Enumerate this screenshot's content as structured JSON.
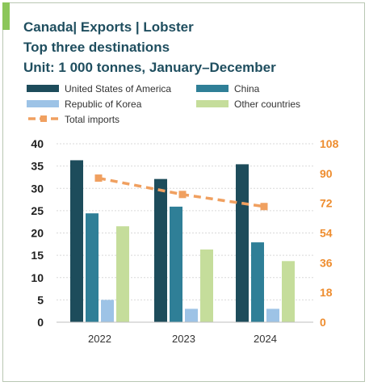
{
  "header": {
    "title_line1": "Canada|  Exports | Lobster",
    "title_line2": "Top three destinations",
    "title_line3": "Unit: 1 000 tonnes, January–December"
  },
  "colors": {
    "accent": "#8cc65a",
    "title": "#1f4e5f",
    "axis_left": "#1f1f1f",
    "axis_right": "#ee8d2f",
    "usa": "#1d4c5b",
    "china": "#2f7f97",
    "korea": "#9dc3e6",
    "other": "#c5dd9b",
    "total": "#f0a060",
    "grid": "#d9d9d9"
  },
  "chart_data": {
    "type": "bar",
    "categories": [
      "2022",
      "2023",
      "2024"
    ],
    "series": [
      {
        "name": "United States of America",
        "values": [
          36.3,
          32.1,
          35.4
        ],
        "color_key": "usa"
      },
      {
        "name": "China",
        "values": [
          24.4,
          25.9,
          17.9
        ],
        "color_key": "china"
      },
      {
        "name": "Republic of Korea",
        "values": [
          5.0,
          3.0,
          3.0
        ],
        "color_key": "korea"
      },
      {
        "name": "Other countries",
        "values": [
          21.5,
          16.3,
          13.7
        ],
        "color_key": "other"
      }
    ],
    "line_series": {
      "name": "Total imports",
      "values": [
        87.2,
        77.3,
        70.0
      ],
      "axis": "right",
      "color_key": "total"
    },
    "ylim": [
      0,
      40
    ],
    "y_ticks": [
      "0",
      "5",
      "10",
      "15",
      "20",
      "25",
      "30",
      "35",
      "40"
    ],
    "y2lim": [
      0,
      108
    ],
    "y2_ticks": [
      "0",
      "18",
      "36",
      "54",
      "72",
      "90",
      "108"
    ],
    "grid": true,
    "legend_position": "top"
  }
}
